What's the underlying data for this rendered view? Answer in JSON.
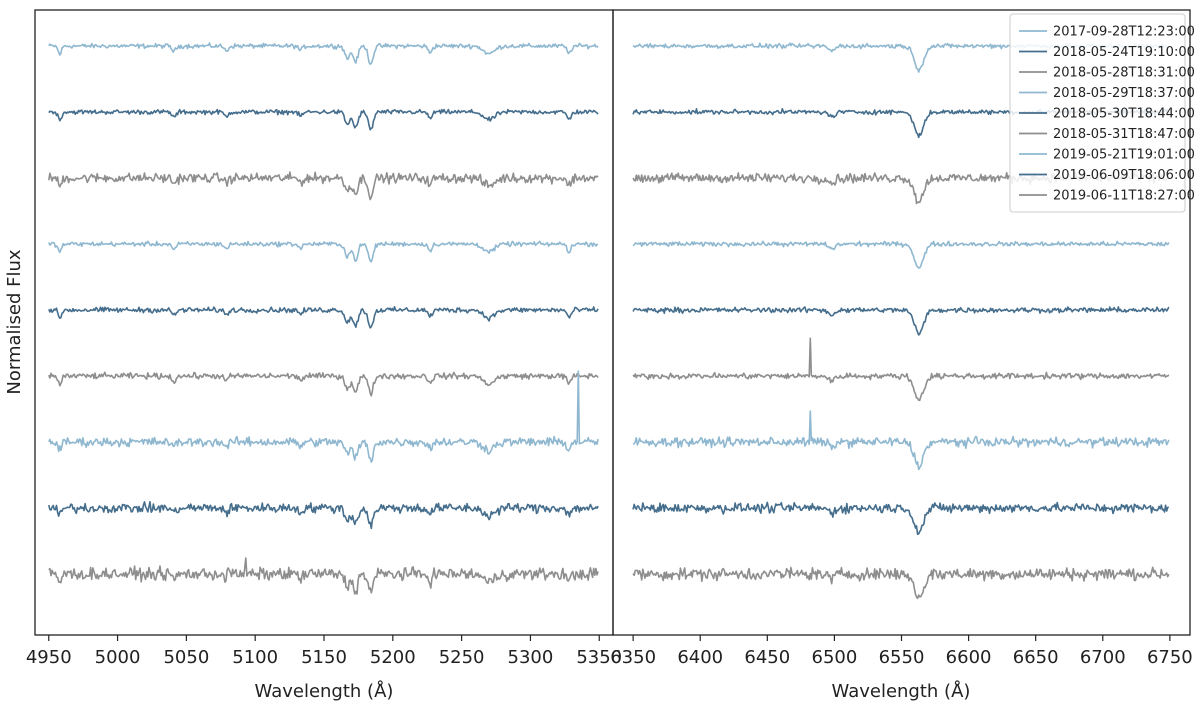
{
  "chart_data": {
    "type": "line",
    "ylabel": "Normalised Flux",
    "xlabel_prefix": "Wavelength (",
    "xlabel_unit": "Å",
    "xlabel_suffix": ")",
    "legend_position": "top-right",
    "grid": false,
    "y_ticks_shown": false,
    "colors": {
      "light": "#8fb8d0",
      "dark": "#456d8c",
      "gray": "#8e8e8e"
    },
    "series": [
      {
        "name": "2017-09-28T12:23:00",
        "color": "light",
        "noise": 0.35
      },
      {
        "name": "2018-05-24T19:10:00",
        "color": "dark",
        "noise": 0.35
      },
      {
        "name": "2018-05-28T18:31:00",
        "color": "gray",
        "noise": 0.75
      },
      {
        "name": "2018-05-29T18:37:00",
        "color": "light",
        "noise": 0.35
      },
      {
        "name": "2018-05-30T18:44:00",
        "color": "dark",
        "noise": 0.4
      },
      {
        "name": "2018-05-31T18:47:00",
        "color": "gray",
        "noise": 0.45
      },
      {
        "name": "2019-05-21T19:01:00",
        "color": "light",
        "noise": 0.7
      },
      {
        "name": "2019-06-09T18:06:00",
        "color": "dark",
        "noise": 0.75
      },
      {
        "name": "2019-06-11T18:27:00",
        "color": "gray",
        "noise": 0.95
      }
    ],
    "panels": [
      {
        "id": "left",
        "xlim": [
          4940,
          5360
        ],
        "xticks": [
          4950,
          5000,
          5050,
          5100,
          5150,
          5200,
          5250,
          5300,
          5350
        ],
        "xrange": [
          4950,
          5350
        ],
        "lines": [
          {
            "center": 4958,
            "depth": 1.6,
            "width": 1.2
          },
          {
            "center": 5041,
            "depth": 1.0,
            "width": 1.5
          },
          {
            "center": 5079,
            "depth": 0.9,
            "width": 1.5
          },
          {
            "center": 5133,
            "depth": 0.8,
            "width": 1.5
          },
          {
            "center": 5167,
            "depth": 2.4,
            "width": 1.8
          },
          {
            "center": 5173,
            "depth": 3.0,
            "width": 1.8
          },
          {
            "center": 5184,
            "depth": 3.4,
            "width": 1.8
          },
          {
            "center": 5227,
            "depth": 1.2,
            "width": 1.5
          },
          {
            "center": 5270,
            "depth": 1.5,
            "width": 4.0
          },
          {
            "center": 5328,
            "depth": 1.4,
            "width": 1.5
          }
        ],
        "spikes": [
          {
            "series_index": 6,
            "x": 5335,
            "height": 14
          },
          {
            "series_index": 8,
            "x": 5093,
            "height": 2.4
          },
          {
            "series_index": 8,
            "x": 5080,
            "height": 2.0
          }
        ]
      },
      {
        "id": "right",
        "xlim": [
          6335,
          6765
        ],
        "xticks": [
          6350,
          6400,
          6450,
          6500,
          6550,
          6600,
          6650,
          6700,
          6750
        ],
        "xrange": [
          6350,
          6750
        ],
        "lines": [
          {
            "center": 6498,
            "depth": 0.9,
            "width": 2.5
          },
          {
            "center": 6563,
            "depth": 4.5,
            "width": 3.5
          }
        ],
        "spikes": [
          {
            "series_index": 5,
            "x": 6482,
            "height": 7
          },
          {
            "series_index": 6,
            "x": 6482,
            "height": 6
          }
        ]
      }
    ]
  }
}
